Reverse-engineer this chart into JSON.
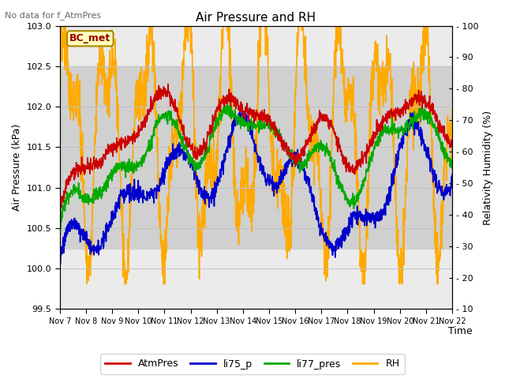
{
  "title": "Air Pressure and RH",
  "top_left_text": "No data for f_AtmPres",
  "annotation_text": "BC_met",
  "xlabel": "Time",
  "ylabel_left": "Air Pressure (kPa)",
  "ylabel_right": "Relativity Humidity (%)",
  "ylim_left": [
    99.5,
    103.0
  ],
  "ylim_right": [
    10,
    100
  ],
  "yticks_left": [
    99.5,
    100.0,
    100.5,
    101.0,
    101.5,
    102.0,
    102.5,
    103.0
  ],
  "yticks_right": [
    10,
    20,
    30,
    40,
    50,
    60,
    70,
    80,
    90,
    100
  ],
  "xtick_labels": [
    "Nov 7",
    "Nov 8",
    "Nov 9",
    "Nov 10",
    "Nov 11",
    "Nov 12",
    "Nov 13",
    "Nov 14",
    "Nov 15",
    "Nov 16",
    "Nov 17",
    "Nov 18",
    "Nov 19",
    "Nov 20",
    "Nov 21",
    "Nov 22"
  ],
  "bg_band_ylim": [
    100.25,
    102.5
  ],
  "line_colors": {
    "AtmPres": "#cc0000",
    "li75_p": "#0000cc",
    "li77_pres": "#00aa00",
    "RH": "#ffaa00"
  },
  "line_widths": {
    "AtmPres": 1.2,
    "li75_p": 1.2,
    "li77_pres": 1.2,
    "RH": 1.2
  },
  "legend_labels": [
    "AtmPres",
    "li75_p",
    "li77_pres",
    "RH"
  ],
  "background_color": "#ffffff",
  "grid_color": "#cccccc",
  "figsize": [
    6.4,
    4.8
  ],
  "dpi": 100
}
